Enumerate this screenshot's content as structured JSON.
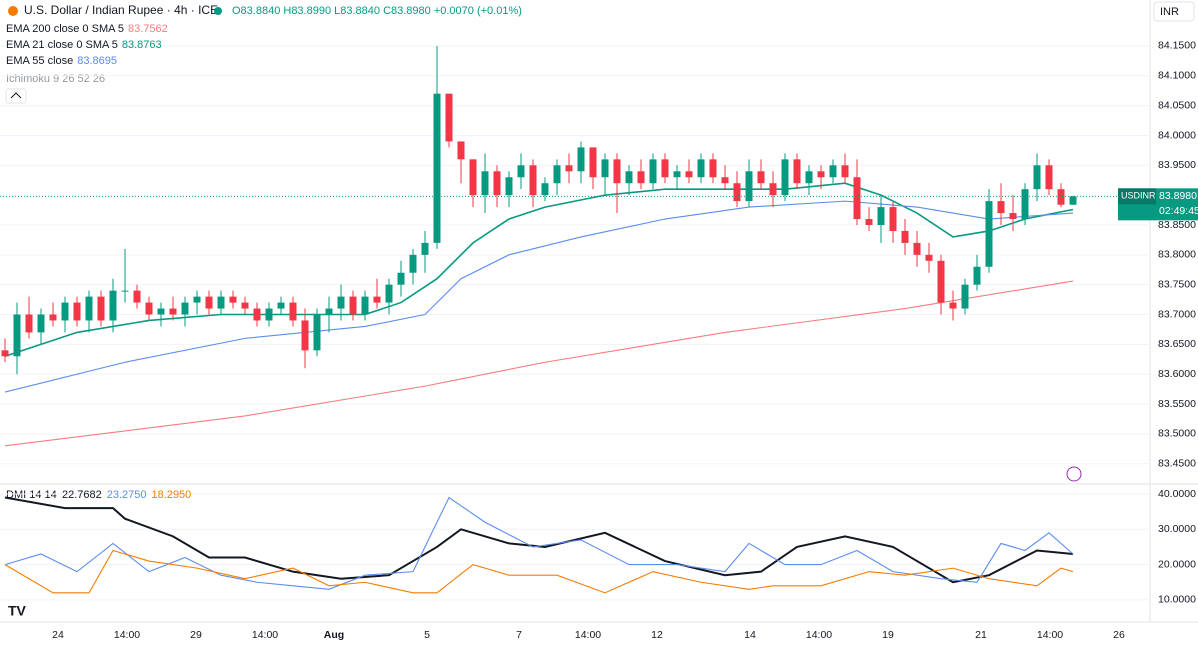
{
  "header": {
    "symbol": "U.S. Dollar / Indian Rupee · 4h · ICE",
    "ohlc": "O83.8840 H83.8990 L83.8840 C83.8980 +0.0070 (+0.01%)",
    "currency": "INR"
  },
  "chart_data": [
    {
      "type": "candlestick",
      "up_color": "#089981",
      "down_color": "#f23645",
      "ylim": [
        83.416,
        84.227
      ],
      "yticks": [
        {
          "value": 84.15,
          "label": "84.1500"
        },
        {
          "value": 84.1,
          "label": "84.1000"
        },
        {
          "value": 84.05,
          "label": "84.0500"
        },
        {
          "value": 84.0,
          "label": "84.0000"
        },
        {
          "value": 83.95,
          "label": "83.9500"
        },
        {
          "value": 83.85,
          "label": "83.8500"
        },
        {
          "value": 83.8,
          "label": "83.8000"
        },
        {
          "value": 83.75,
          "label": "83.7500"
        },
        {
          "value": 83.7,
          "label": "83.7000"
        },
        {
          "value": 83.65,
          "label": "83.6500"
        },
        {
          "value": 83.6,
          "label": "83.6000"
        },
        {
          "value": 83.55,
          "label": "83.5500"
        },
        {
          "value": 83.5,
          "label": "83.5000"
        },
        {
          "value": 83.45,
          "label": "83.4500"
        }
      ],
      "xlabels": [
        "24",
        "14:00",
        "29",
        "14:00",
        "Aug",
        "5",
        "7",
        "14:00",
        "12",
        "14",
        "14:00",
        "19",
        "21",
        "14:00",
        "26"
      ],
      "price_tag": {
        "symbol": "USDINR",
        "price": 83.898,
        "price_label": "83.8980",
        "countdown": "02:49:45"
      },
      "hidden_indicator": "Ichimoku 9 26 52 26",
      "candles": [
        [
          83.64,
          83.66,
          83.62,
          83.63
        ],
        [
          83.63,
          83.72,
          83.6,
          83.7
        ],
        [
          83.7,
          83.73,
          83.66,
          83.67
        ],
        [
          83.67,
          83.71,
          83.65,
          83.7
        ],
        [
          83.7,
          83.72,
          83.68,
          83.69
        ],
        [
          83.69,
          83.73,
          83.67,
          83.72
        ],
        [
          83.72,
          83.73,
          83.68,
          83.69
        ],
        [
          83.69,
          83.74,
          83.67,
          83.73
        ],
        [
          83.73,
          83.74,
          83.68,
          83.69
        ],
        [
          83.69,
          83.76,
          83.67,
          83.74
        ],
        [
          83.74,
          83.81,
          83.72,
          83.74
        ],
        [
          83.74,
          83.75,
          83.71,
          83.72
        ],
        [
          83.72,
          83.73,
          83.69,
          83.7
        ],
        [
          83.7,
          83.72,
          83.68,
          83.71
        ],
        [
          83.71,
          83.73,
          83.69,
          83.7
        ],
        [
          83.7,
          83.73,
          83.68,
          83.72
        ],
        [
          83.72,
          83.74,
          83.7,
          83.73
        ],
        [
          83.73,
          83.74,
          83.7,
          83.71
        ],
        [
          83.71,
          83.74,
          83.7,
          83.73
        ],
        [
          83.73,
          83.74,
          83.71,
          83.72
        ],
        [
          83.72,
          83.73,
          83.7,
          83.71
        ],
        [
          83.71,
          83.72,
          83.68,
          83.69
        ],
        [
          83.69,
          83.72,
          83.68,
          83.71
        ],
        [
          83.71,
          83.73,
          83.7,
          83.72
        ],
        [
          83.72,
          83.73,
          83.68,
          83.69
        ],
        [
          83.69,
          83.71,
          83.61,
          83.64
        ],
        [
          83.64,
          83.71,
          83.63,
          83.7
        ],
        [
          83.7,
          83.73,
          83.67,
          83.71
        ],
        [
          83.71,
          83.75,
          83.69,
          83.73
        ],
        [
          83.73,
          83.74,
          83.69,
          83.7
        ],
        [
          83.7,
          83.74,
          83.69,
          83.73
        ],
        [
          83.73,
          83.76,
          83.71,
          83.72
        ],
        [
          83.72,
          83.76,
          83.7,
          83.75
        ],
        [
          83.75,
          83.79,
          83.73,
          83.77
        ],
        [
          83.77,
          83.81,
          83.75,
          83.8
        ],
        [
          83.8,
          83.84,
          83.77,
          83.82
        ],
        [
          83.82,
          84.15,
          83.81,
          84.07
        ],
        [
          84.07,
          84.07,
          83.98,
          83.99
        ],
        [
          83.99,
          83.99,
          83.92,
          83.96
        ],
        [
          83.96,
          83.96,
          83.88,
          83.9
        ],
        [
          83.9,
          83.97,
          83.87,
          83.94
        ],
        [
          83.94,
          83.95,
          83.88,
          83.9
        ],
        [
          83.9,
          83.94,
          83.88,
          83.93
        ],
        [
          83.93,
          83.97,
          83.91,
          83.95
        ],
        [
          83.95,
          83.96,
          83.88,
          83.9
        ],
        [
          83.9,
          83.93,
          83.89,
          83.92
        ],
        [
          83.92,
          83.96,
          83.9,
          83.95
        ],
        [
          83.95,
          83.97,
          83.92,
          83.94
        ],
        [
          83.94,
          83.99,
          83.92,
          83.98
        ],
        [
          83.98,
          83.98,
          83.91,
          83.93
        ],
        [
          83.93,
          83.97,
          83.9,
          83.96
        ],
        [
          83.96,
          83.97,
          83.87,
          83.92
        ],
        [
          83.92,
          83.95,
          83.9,
          83.94
        ],
        [
          83.94,
          83.96,
          83.91,
          83.92
        ],
        [
          83.92,
          83.97,
          83.91,
          83.96
        ],
        [
          83.96,
          83.97,
          83.92,
          83.93
        ],
        [
          83.93,
          83.95,
          83.91,
          83.94
        ],
        [
          83.94,
          83.96,
          83.92,
          83.93
        ],
        [
          83.93,
          83.97,
          83.92,
          83.96
        ],
        [
          83.96,
          83.97,
          83.92,
          83.93
        ],
        [
          83.93,
          83.95,
          83.91,
          83.92
        ],
        [
          83.92,
          83.94,
          83.88,
          83.89
        ],
        [
          83.89,
          83.96,
          83.88,
          83.94
        ],
        [
          83.94,
          83.96,
          83.91,
          83.92
        ],
        [
          83.92,
          83.94,
          83.88,
          83.9
        ],
        [
          83.9,
          83.97,
          83.89,
          83.96
        ],
        [
          83.96,
          83.97,
          83.91,
          83.92
        ],
        [
          83.92,
          83.95,
          83.9,
          83.94
        ],
        [
          83.94,
          83.95,
          83.91,
          83.93
        ],
        [
          83.93,
          83.96,
          83.92,
          83.95
        ],
        [
          83.95,
          83.97,
          83.92,
          83.93
        ],
        [
          83.93,
          83.96,
          83.85,
          83.86
        ],
        [
          83.86,
          83.88,
          83.84,
          83.85
        ],
        [
          83.85,
          83.9,
          83.82,
          83.88
        ],
        [
          83.88,
          83.89,
          83.82,
          83.84
        ],
        [
          83.84,
          83.86,
          83.8,
          83.82
        ],
        [
          83.82,
          83.84,
          83.78,
          83.8
        ],
        [
          83.8,
          83.82,
          83.77,
          83.79
        ],
        [
          83.79,
          83.8,
          83.7,
          83.72
        ],
        [
          83.72,
          83.74,
          83.69,
          83.71
        ],
        [
          83.71,
          83.76,
          83.7,
          83.75
        ],
        [
          83.75,
          83.8,
          83.74,
          83.78
        ],
        [
          83.78,
          83.91,
          83.77,
          83.89
        ],
        [
          83.89,
          83.92,
          83.85,
          83.87
        ],
        [
          83.87,
          83.9,
          83.84,
          83.86
        ],
        [
          83.86,
          83.92,
          83.85,
          83.91
        ],
        [
          83.91,
          83.97,
          83.89,
          83.95
        ],
        [
          83.95,
          83.96,
          83.9,
          83.91
        ],
        [
          83.91,
          83.92,
          83.88,
          83.884
        ],
        [
          83.884,
          83.899,
          83.884,
          83.898
        ]
      ],
      "series": [
        {
          "name": "EMA 200 close 0 SMA 5",
          "legend_value": "83.7562",
          "color": "#f77c80",
          "x": [
            0,
            20,
            35,
            45,
            60,
            75,
            89
          ],
          "values": [
            83.48,
            83.53,
            83.58,
            83.62,
            83.67,
            83.71,
            83.756
          ]
        },
        {
          "name": "EMA 21 close 0 SMA 5",
          "legend_value": "83.8763",
          "color": "#089981",
          "x": [
            0,
            6,
            12,
            18,
            24,
            30,
            33,
            36,
            39,
            42,
            45,
            50,
            55,
            60,
            65,
            70,
            73,
            76,
            79,
            82,
            85,
            89
          ],
          "values": [
            83.63,
            83.67,
            83.69,
            83.7,
            83.7,
            83.7,
            83.72,
            83.76,
            83.82,
            83.86,
            83.88,
            83.9,
            83.91,
            83.91,
            83.91,
            83.92,
            83.9,
            83.87,
            83.83,
            83.84,
            83.86,
            83.876
          ]
        },
        {
          "name": "EMA 55 close",
          "legend_value": "83.8695",
          "color": "#5b8def",
          "x": [
            0,
            10,
            20,
            30,
            35,
            38,
            42,
            48,
            55,
            62,
            70,
            76,
            82,
            89
          ],
          "values": [
            83.57,
            83.62,
            83.66,
            83.68,
            83.7,
            83.76,
            83.8,
            83.83,
            83.86,
            83.88,
            83.89,
            83.88,
            83.86,
            83.87
          ]
        }
      ]
    },
    {
      "type": "line",
      "title": "DMI 14 14",
      "ylim": [
        3.74,
        42.83
      ],
      "yticks": [
        {
          "value": 40,
          "label": "40.0000"
        },
        {
          "value": 30,
          "label": "30.0000"
        },
        {
          "value": 20,
          "label": "20.0000"
        },
        {
          "value": 10,
          "label": "10.0000"
        }
      ],
      "series": [
        {
          "legend_value": "22.7682",
          "color": "#131722",
          "x": [
            0,
            5,
            9,
            10,
            14,
            17,
            20,
            24,
            28,
            32,
            36,
            38,
            42,
            45,
            50,
            55,
            60,
            63,
            66,
            70,
            74,
            79,
            82,
            86,
            89
          ],
          "values": [
            39,
            36,
            36,
            33,
            28,
            22,
            22,
            18,
            16,
            17,
            25,
            30,
            26,
            25,
            29,
            21,
            17,
            18,
            25,
            28,
            25,
            15,
            17,
            24,
            23
          ]
        },
        {
          "legend_value": "23.2750",
          "color": "#5b8def",
          "x": [
            0,
            3,
            6,
            9,
            12,
            15,
            18,
            21,
            24,
            27,
            30,
            34,
            37,
            40,
            44,
            48,
            52,
            56,
            60,
            62,
            65,
            68,
            71,
            74,
            78,
            81,
            83,
            85,
            87,
            89
          ],
          "values": [
            20,
            23,
            18,
            26,
            18,
            22,
            17,
            15,
            14,
            13,
            17,
            18,
            39,
            32,
            25,
            27,
            20,
            20,
            18,
            26,
            20,
            20,
            24,
            18,
            16,
            15,
            26,
            24,
            29,
            23
          ]
        },
        {
          "legend_value": "18.2950",
          "color": "#f57c00",
          "x": [
            0,
            4,
            7,
            9,
            12,
            16,
            20,
            24,
            27,
            30,
            34,
            36,
            39,
            42,
            46,
            50,
            54,
            58,
            62,
            64,
            68,
            72,
            75,
            79,
            82,
            86,
            88,
            89
          ],
          "values": [
            20,
            12,
            12,
            24,
            21,
            19,
            16,
            19,
            14,
            15,
            12,
            12,
            20,
            17,
            17,
            12,
            18,
            15,
            13,
            14,
            14,
            18,
            17,
            19,
            16,
            14,
            19,
            18
          ]
        }
      ]
    }
  ]
}
